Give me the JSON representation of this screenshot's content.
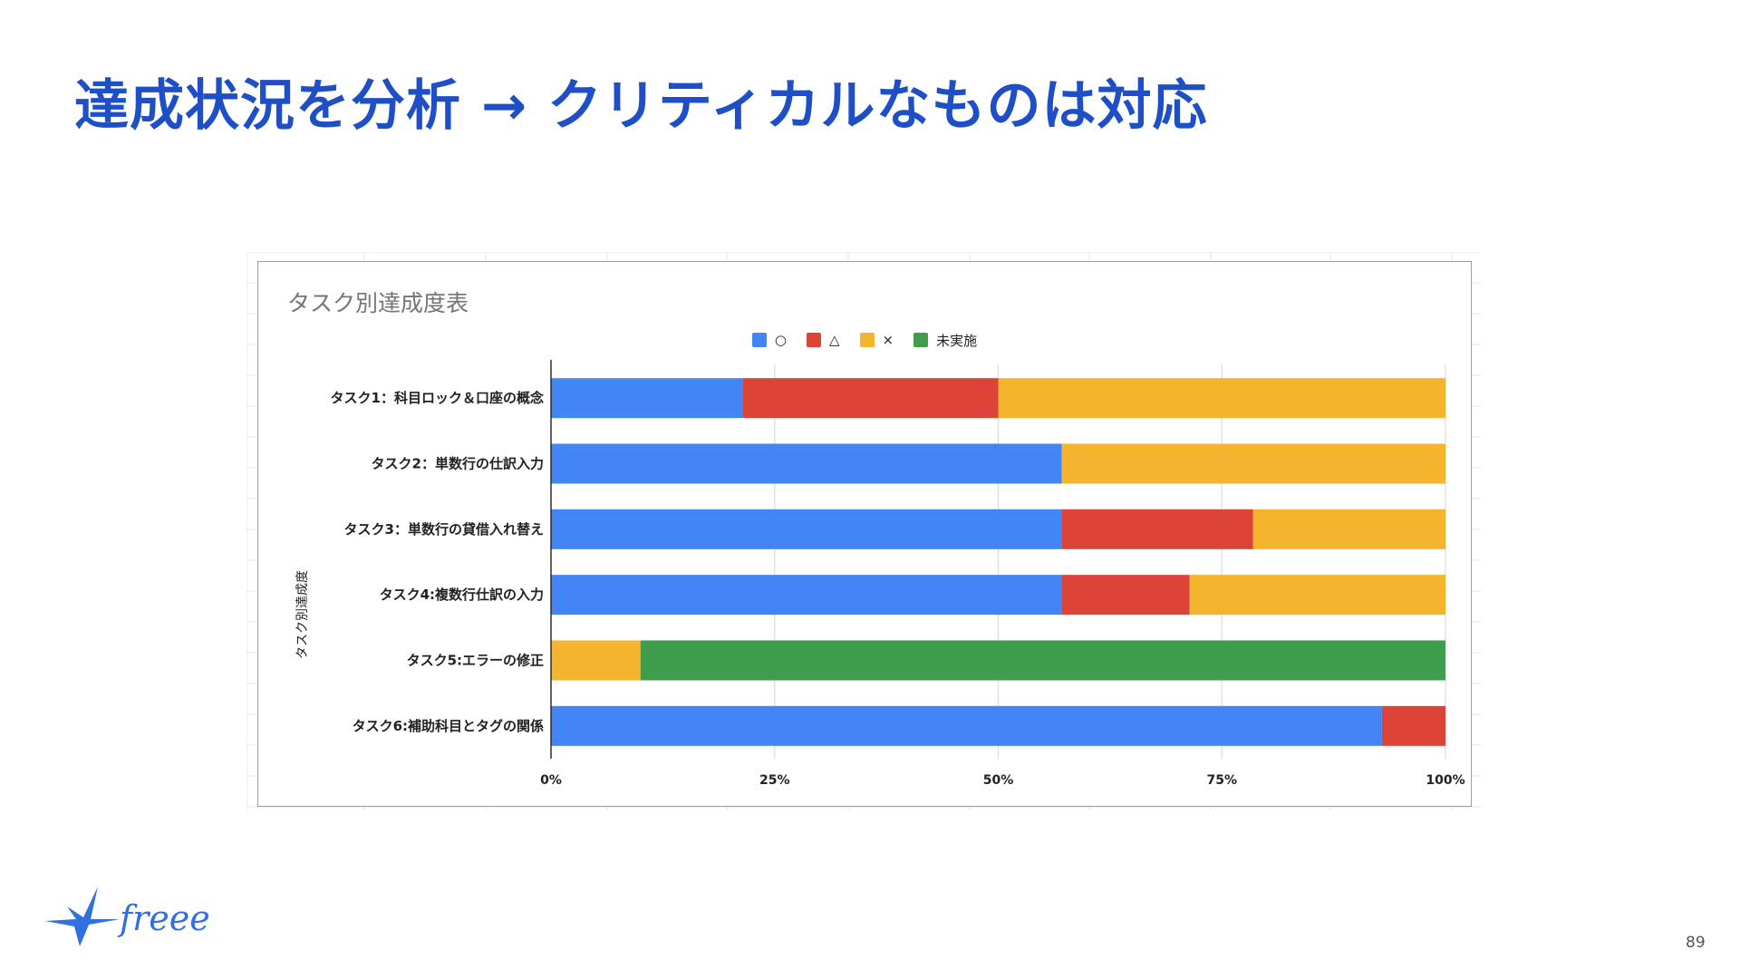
{
  "slide": {
    "title": "達成状況を分析 → クリティカルなものは対応",
    "page_number": "89",
    "logo_text": "freee"
  },
  "colors": {
    "title": "#1f4fc7",
    "circle": "#4285f4",
    "triangle": "#db4437",
    "cross": "#f4b42d",
    "not_done": "#3f9d4e",
    "logo": "#2f6fe0"
  },
  "chart_data": {
    "type": "bar",
    "orientation": "horizontal",
    "stacked": "percent",
    "title": "タスク別達成度表",
    "ylabel": "タスク別達成度",
    "xlabel": "",
    "xlim": [
      0,
      100
    ],
    "xticks": [
      "0%",
      "25%",
      "50%",
      "75%",
      "100%"
    ],
    "legend_position": "top",
    "grid": true,
    "categories": [
      "タスク1：科目ロック＆口座の概念",
      "タスク2：単数行の仕訳入力",
      "タスク3：単数行の貸借入れ替え",
      "タスク4:複数行仕訳の入力",
      "タスク5:エラーの修正",
      "タスク6:補助科目とタグの関係"
    ],
    "series": [
      {
        "name": "○",
        "color": "#4285f4",
        "values": [
          21.4,
          57.1,
          57.1,
          57.1,
          0,
          92.9
        ]
      },
      {
        "name": "△",
        "color": "#db4437",
        "values": [
          28.6,
          0,
          21.4,
          14.3,
          0,
          7.1
        ]
      },
      {
        "name": "×",
        "color": "#f4b42d",
        "values": [
          50.0,
          42.9,
          21.5,
          28.6,
          10.0,
          0
        ]
      },
      {
        "name": "未実施",
        "color": "#3f9d4e",
        "values": [
          0,
          0,
          0,
          0,
          90.0,
          0
        ]
      }
    ]
  }
}
